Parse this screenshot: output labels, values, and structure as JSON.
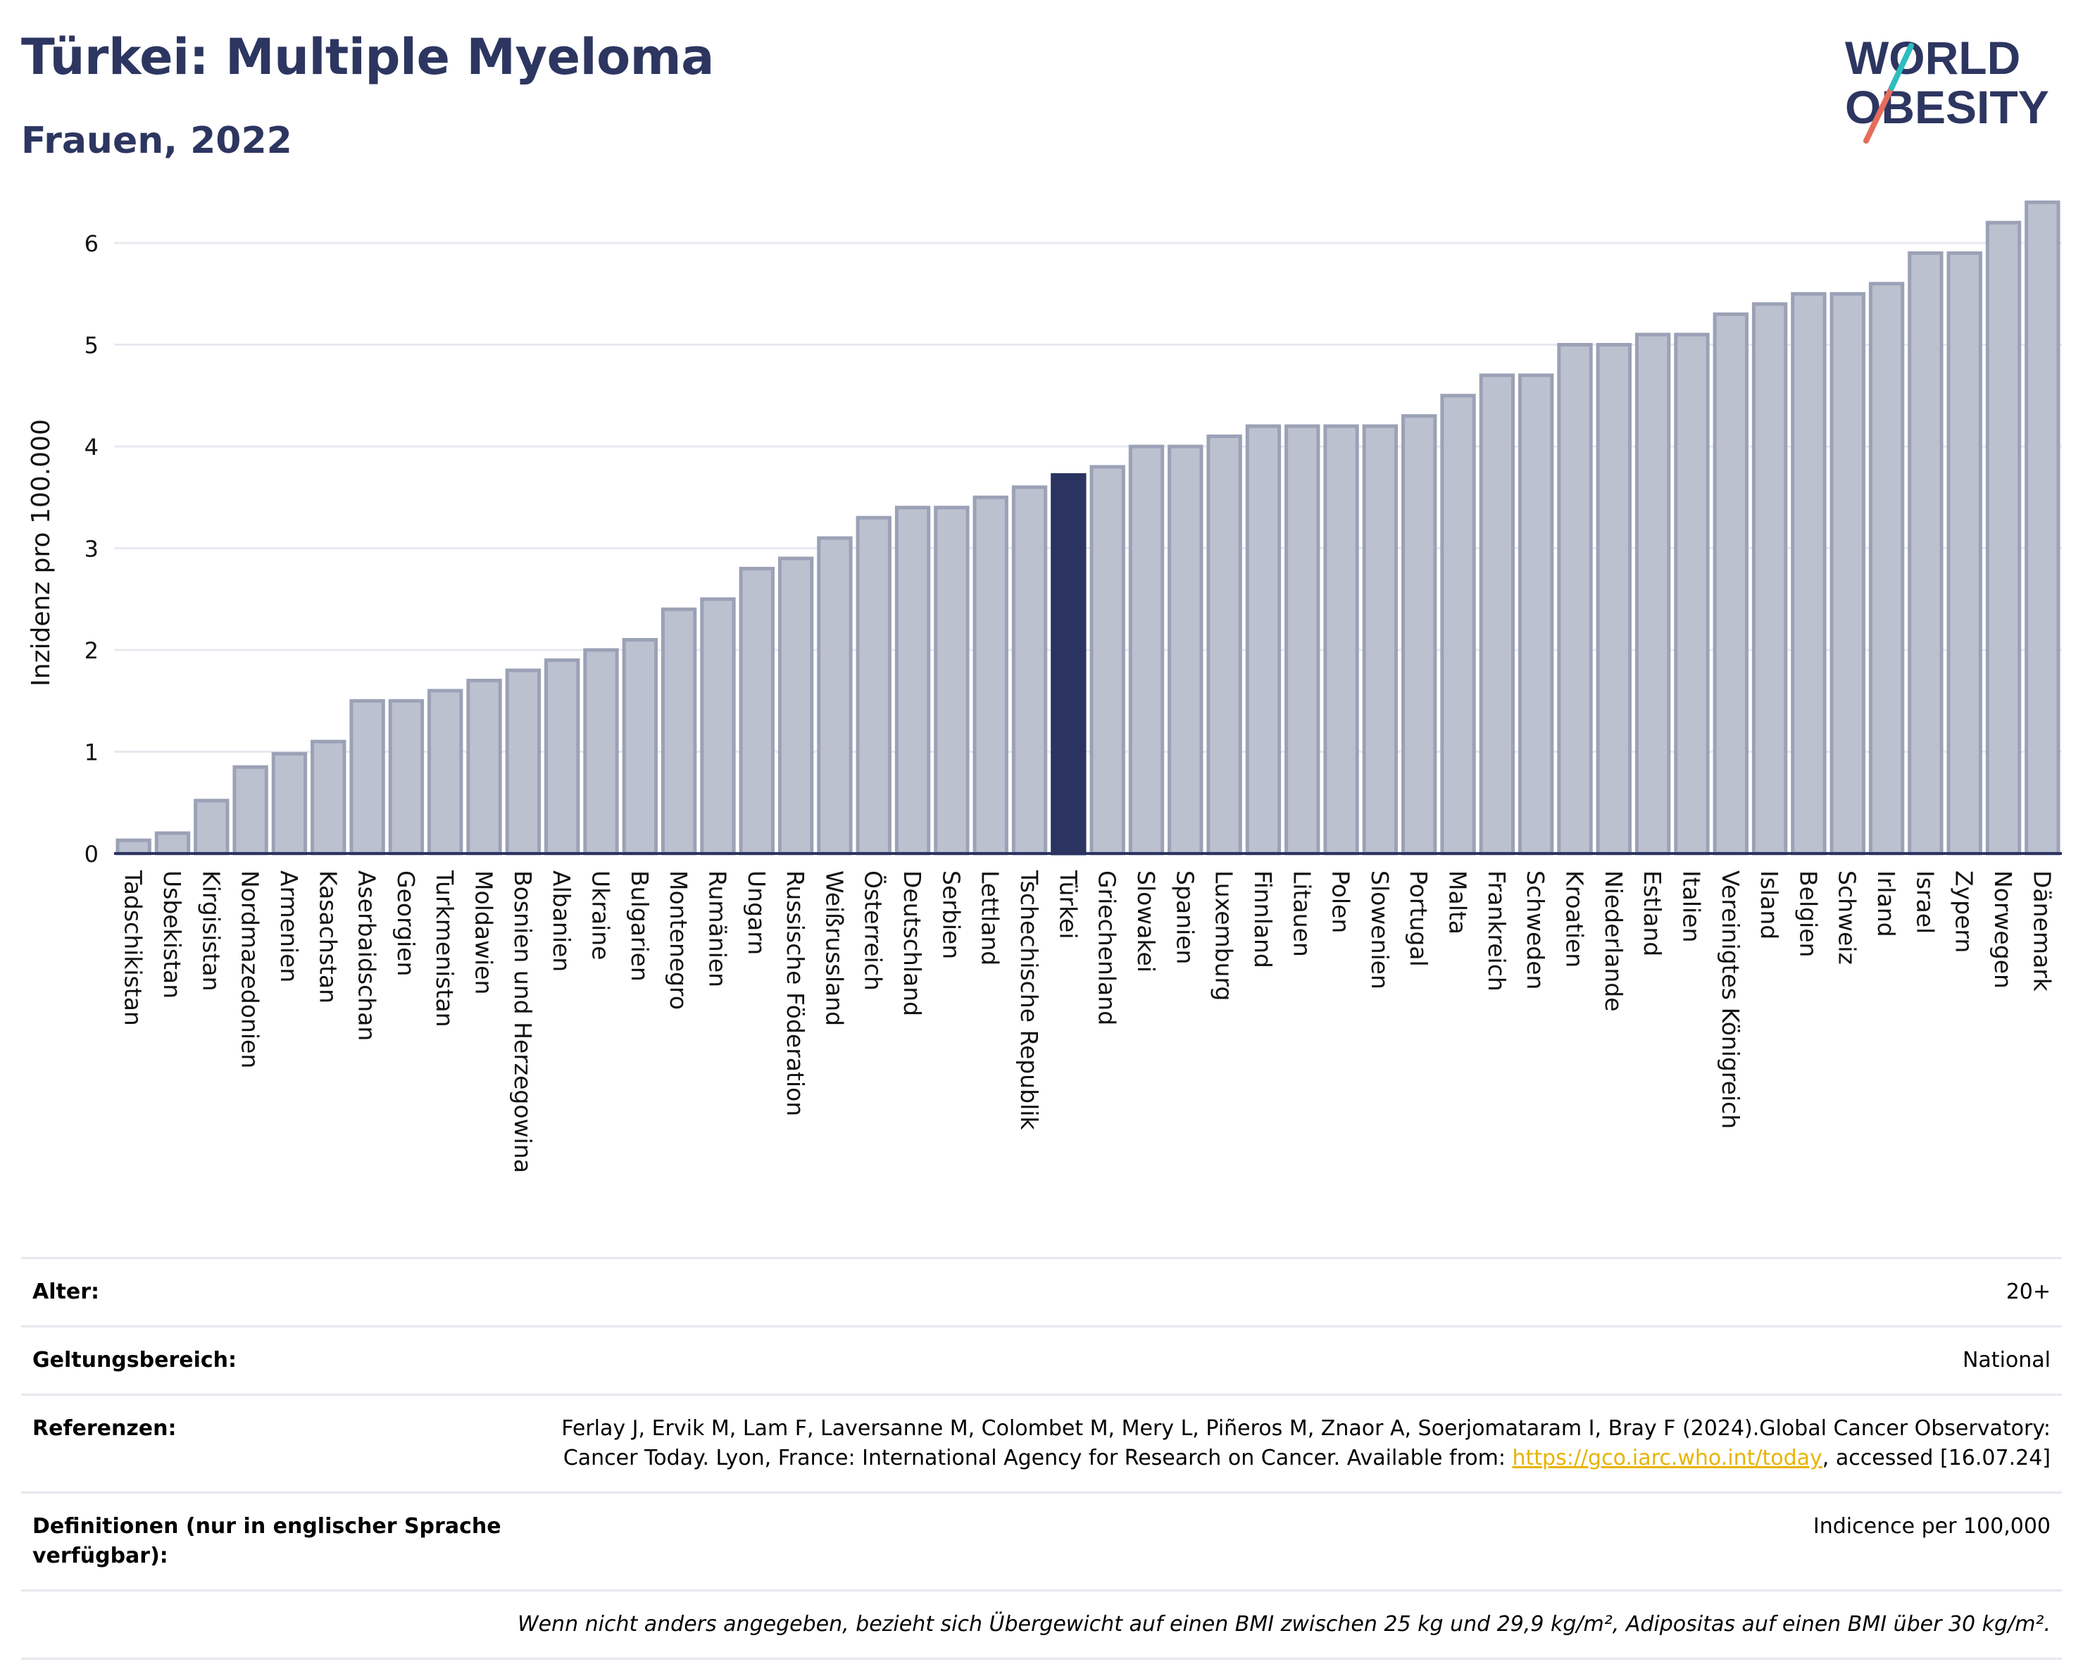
{
  "title": "Türkei: Multiple Myeloma",
  "subtitle": "Frauen, 2022",
  "logo": {
    "line1": "WORLD",
    "line2": "OBESITY"
  },
  "colors": {
    "bar": "#bcc1cf",
    "bar_stroke": "#9ba1b6",
    "highlight": "#2b3461",
    "title": "#2d3660",
    "accent_red": "#e56d5a",
    "accent_teal": "#2ebcc0"
  },
  "chart_data": {
    "type": "bar",
    "ylabel": "Inzidenz pro 100.000",
    "ylim": [
      0,
      6.45
    ],
    "yticks": [
      0,
      1,
      2,
      3,
      4,
      5,
      6
    ],
    "grid": true,
    "highlight": "Türkei",
    "categories": [
      "Tadschikistan",
      "Usbekistan",
      "Kirgisistan",
      "Nordmazedonien",
      "Armenien",
      "Kasachstan",
      "Aserbaidschan",
      "Georgien",
      "Turkmenistan",
      "Moldawien",
      "Bosnien und Herzegowina",
      "Albanien",
      "Ukraine",
      "Bulgarien",
      "Montenegro",
      "Rumänien",
      "Ungarn",
      "Russische Föderation",
      "Weißrussland",
      "Österreich",
      "Deutschland",
      "Serbien",
      "Lettland",
      "Tschechische Republik",
      "Türkei",
      "Griechenland",
      "Slowakei",
      "Spanien",
      "Luxemburg",
      "Finnland",
      "Litauen",
      "Polen",
      "Slowenien",
      "Portugal",
      "Malta",
      "Frankreich",
      "Schweden",
      "Kroatien",
      "Niederlande",
      "Estland",
      "Italien",
      "Vereinigtes Königreich",
      "Island",
      "Belgien",
      "Schweiz",
      "Irland",
      "Israel",
      "Zypern",
      "Norwegen",
      "Dänemark"
    ],
    "values": [
      0.13,
      0.2,
      0.52,
      0.85,
      0.98,
      1.1,
      1.5,
      1.5,
      1.6,
      1.7,
      1.8,
      1.9,
      2.0,
      2.1,
      2.4,
      2.5,
      2.8,
      2.9,
      3.1,
      3.3,
      3.4,
      3.4,
      3.5,
      3.6,
      3.72,
      3.8,
      4.0,
      4.0,
      4.1,
      4.2,
      4.2,
      4.2,
      4.2,
      4.3,
      4.5,
      4.7,
      4.7,
      5.0,
      5.0,
      5.1,
      5.1,
      5.3,
      5.4,
      5.5,
      5.5,
      5.6,
      5.9,
      5.9,
      6.2,
      6.4
    ]
  },
  "info": {
    "rows": [
      {
        "label": "Alter:",
        "value": "20+"
      },
      {
        "label": "Geltungsbereich:",
        "value": "National"
      },
      {
        "label": "Referenzen:",
        "value_pre": "Ferlay J, Ervik M, Lam F, Laversanne M, Colombet M, Mery L, Piñeros M, Znaor A, Soerjomataram I, Bray F (2024).Global Cancer Observatory: Cancer Today. Lyon, France: International Agency for Research on Cancer. Available from: ",
        "link": "https://gco.iarc.who.int/today",
        "value_post": ", accessed [16.07.24]"
      },
      {
        "label": "Definitionen (nur in englischer Sprache verfügbar):",
        "value": "Indicence per 100,000"
      }
    ],
    "footnote": "Wenn nicht anders angegeben, bezieht sich Übergewicht auf einen BMI zwischen 25 kg und 29,9 kg/m², Adipositas auf einen BMI über 30 kg/m²."
  }
}
